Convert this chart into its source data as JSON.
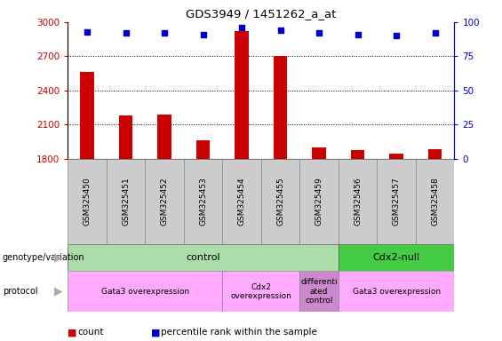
{
  "title": "GDS3949 / 1451262_a_at",
  "samples": [
    "GSM325450",
    "GSM325451",
    "GSM325452",
    "GSM325453",
    "GSM325454",
    "GSM325455",
    "GSM325459",
    "GSM325456",
    "GSM325457",
    "GSM325458"
  ],
  "counts": [
    2560,
    2180,
    2185,
    1960,
    2920,
    2700,
    1900,
    1875,
    1840,
    1880
  ],
  "percentile_ranks": [
    93,
    92,
    92,
    91,
    96,
    94,
    92,
    91,
    90,
    92
  ],
  "ylim_left": [
    1800,
    3000
  ],
  "ylim_right": [
    0,
    100
  ],
  "yticks_left": [
    1800,
    2100,
    2400,
    2700,
    3000
  ],
  "yticks_right": [
    0,
    25,
    50,
    75,
    100
  ],
  "bar_color": "#cc0000",
  "dot_color": "#0000cc",
  "bar_width": 0.35,
  "genotype_groups": [
    {
      "label": "control",
      "start": 0,
      "end": 7,
      "color": "#aaddaa"
    },
    {
      "label": "Cdx2-null",
      "start": 7,
      "end": 10,
      "color": "#44cc44"
    }
  ],
  "protocol_groups": [
    {
      "label": "Gata3 overexpression",
      "start": 0,
      "end": 4,
      "color": "#ffaaff"
    },
    {
      "label": "Cdx2\noverexpression",
      "start": 4,
      "end": 6,
      "color": "#ffaaff"
    },
    {
      "label": "differenti\nated\ncontrol",
      "start": 6,
      "end": 7,
      "color": "#cc88cc"
    },
    {
      "label": "Gata3 overexpression",
      "start": 7,
      "end": 10,
      "color": "#ffaaff"
    }
  ],
  "left_axis_color": "#cc0000",
  "right_axis_color": "#0000cc",
  "label_box_color": "#cccccc",
  "label_text_color": "#000000",
  "grid_linestyle": "dotted"
}
